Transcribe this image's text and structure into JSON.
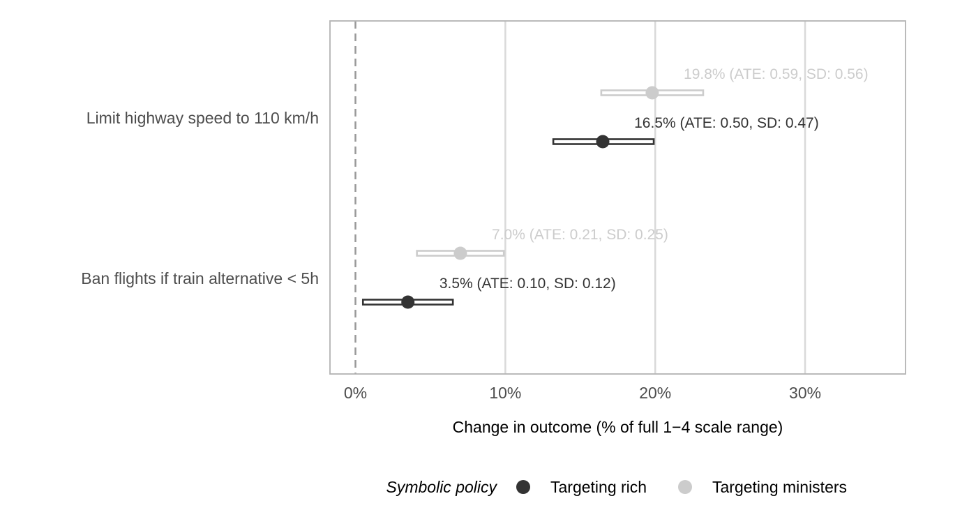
{
  "chart_data": {
    "type": "forest",
    "xlabel": "Change in outcome (% of full 1−4 scale range)",
    "xlim": [
      -1.7,
      36.7
    ],
    "x_ticks": [
      0,
      10,
      20,
      30
    ],
    "x_tick_labels": [
      "0%",
      "10%",
      "20%",
      "30%"
    ],
    "categories": [
      "Limit highway speed to 110 km/h",
      "Ban flights if train alternative < 5h"
    ],
    "reference_line": 0,
    "grid": "vertical major",
    "legend": {
      "title": "Symbolic policy",
      "placement": "bottom",
      "entries": [
        "Targeting rich",
        "Targeting ministers"
      ]
    },
    "series": [
      {
        "name": "Targeting rich",
        "color": "#333333",
        "points": [
          {
            "category": "Limit highway speed to 110 km/h",
            "estimate": 16.5,
            "ci_low": 13.2,
            "ci_high": 19.9,
            "label": "16.5% (ATE: 0.50, SD: 0.47)"
          },
          {
            "category": "Ban flights if train alternative < 5h",
            "estimate": 3.5,
            "ci_low": 0.5,
            "ci_high": 6.5,
            "label": "3.5% (ATE: 0.10, SD: 0.12)"
          }
        ]
      },
      {
        "name": "Targeting ministers",
        "color": "#cccccc",
        "points": [
          {
            "category": "Limit highway speed to 110 km/h",
            "estimate": 19.8,
            "ci_low": 16.4,
            "ci_high": 23.2,
            "label": "19.8% (ATE: 0.59, SD: 0.56)"
          },
          {
            "category": "Ban flights if train alternative < 5h",
            "estimate": 7.0,
            "ci_low": 4.1,
            "ci_high": 9.9,
            "label": "7.0% (ATE: 0.21, SD: 0.25)"
          }
        ]
      }
    ]
  }
}
